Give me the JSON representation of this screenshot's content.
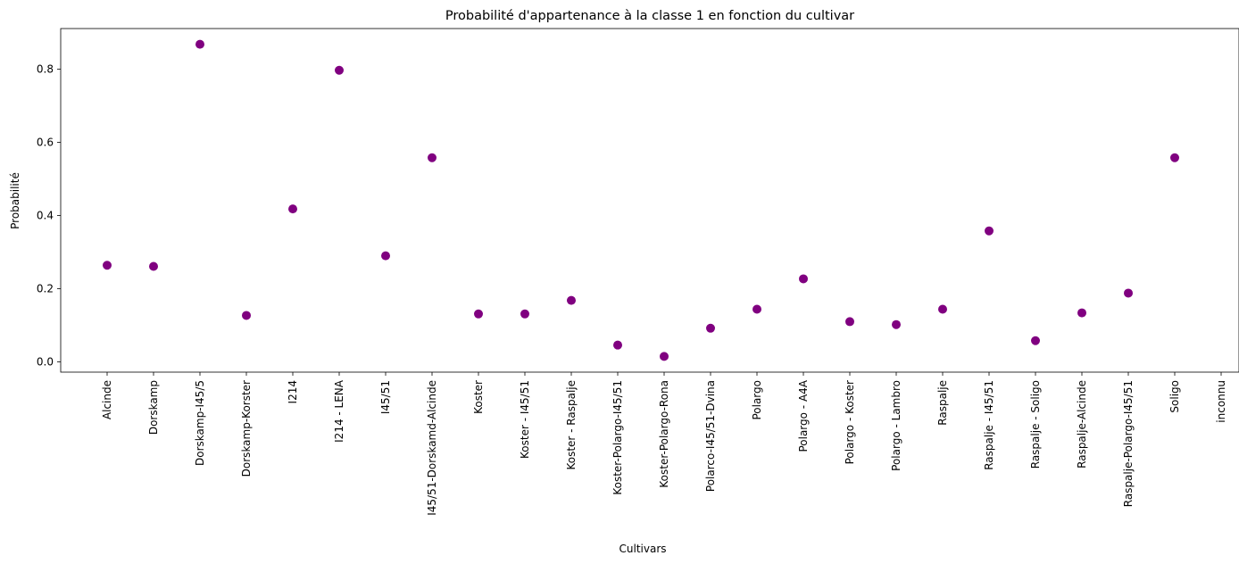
{
  "chart_data": {
    "type": "scatter",
    "title": "Probabilité d'appartenance à la classe 1 en fonction du cultivar",
    "xlabel": "Cultivars",
    "ylabel": "Probabilité",
    "categories": [
      "Alcinde",
      "Dorskamp",
      "Dorskamp-I45/5",
      "Dorskamp-Korster",
      "I214",
      "I214 - LENA",
      "I45/51",
      "I45/51-Dorskamd-Alcinde",
      "Koster",
      "Koster - I45/51",
      "Koster - Raspalje",
      "Koster-Polargo-I45/51",
      "Koster-Polargo-Rona",
      "Polarco-I45/51-Dvina",
      "Polargo",
      "Polargo - A4A",
      "Polargo - Koster",
      "Polargo - Lambro",
      "Raspalje",
      "Raspalje - I45/51",
      "Raspalje - Soligo",
      "Raspalje-Alcinde",
      "Raspalje-Polargo-I45/51",
      "Soligo",
      "inconnu"
    ],
    "values": [
      0.264,
      0.261,
      0.868,
      0.127,
      0.418,
      0.797,
      0.29,
      0.558,
      0.131,
      0.131,
      0.168,
      0.046,
      0.015,
      0.092,
      0.144,
      0.227,
      0.11,
      0.102,
      0.144,
      0.358,
      0.058,
      0.134,
      0.188,
      0.558,
      null
    ],
    "ylim": [
      -0.028,
      0.911
    ],
    "yticks": [
      "0.0",
      "0.2",
      "0.4",
      "0.6",
      "0.8"
    ],
    "ytick_values": [
      0.0,
      0.2,
      0.4,
      0.6,
      0.8
    ],
    "marker_color": "#800080",
    "grid": false,
    "legend": "none"
  }
}
